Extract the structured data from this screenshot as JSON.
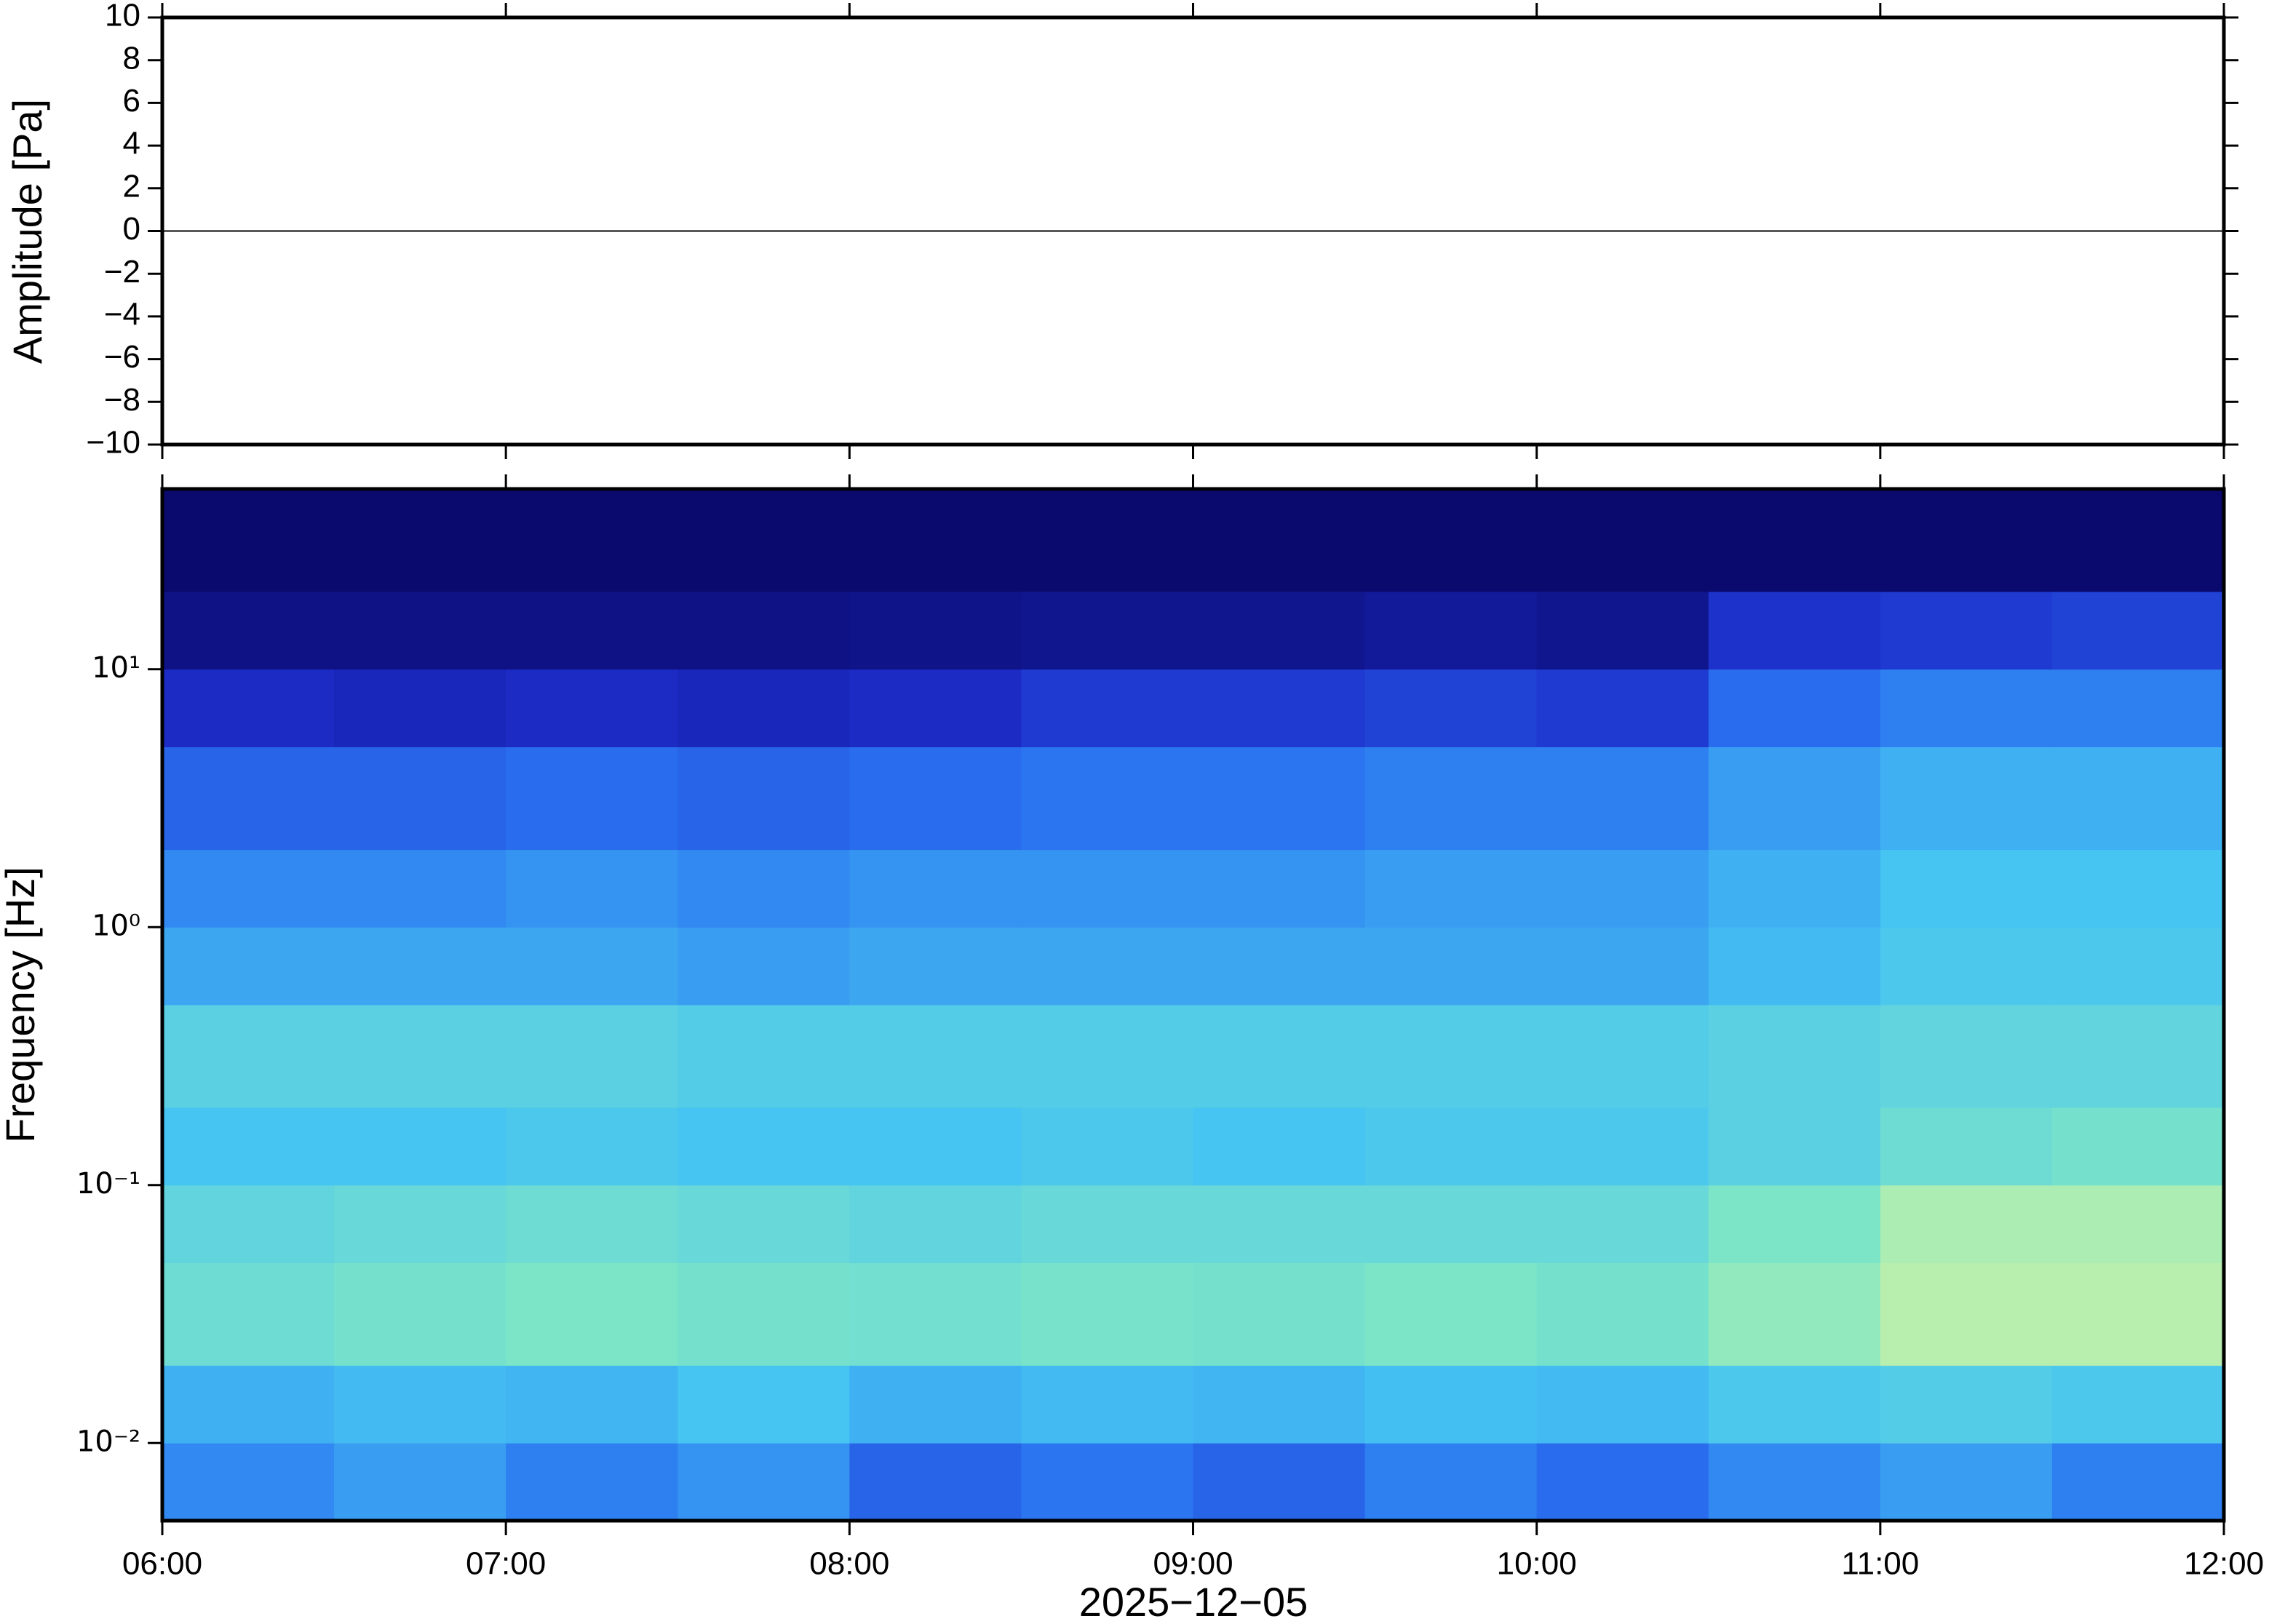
{
  "chart_data": [
    {
      "type": "line",
      "ylabel": "Amplitude [Pa]",
      "x": [
        "06:00",
        "06:30",
        "07:00",
        "07:30",
        "08:00",
        "08:30",
        "09:00",
        "09:30",
        "10:00",
        "10:30",
        "11:00",
        "11:30",
        "12:00"
      ],
      "values": [
        0,
        0,
        0,
        0,
        0,
        0,
        0,
        0,
        0,
        0,
        0,
        0,
        0
      ],
      "color": "#000000",
      "xlim": [
        "06:00",
        "12:00"
      ],
      "ylim": [
        -10,
        10
      ],
      "yticks": [
        {
          "value": -10,
          "label": "−10"
        },
        {
          "value": -8,
          "label": "−8"
        },
        {
          "value": -6,
          "label": "−6"
        },
        {
          "value": -4,
          "label": "−4"
        },
        {
          "value": -2,
          "label": "−2"
        },
        0,
        2,
        4,
        6,
        8,
        10
      ]
    },
    {
      "type": "heatmap",
      "ylabel": "Frequency [Hz]",
      "xlabel": "2025−12−05",
      "xlim": [
        "06:00",
        "12:00"
      ],
      "xticks": [
        "06:00",
        "07:00",
        "08:00",
        "09:00",
        "10:00",
        "11:00",
        "12:00"
      ],
      "ylim": [
        0.005,
        50
      ],
      "yscale": "log",
      "yticks": [
        {
          "value": 0.01,
          "label": "10⁻²"
        },
        {
          "value": 0.1,
          "label": "10⁻¹"
        },
        {
          "value": 1,
          "label": "10⁰"
        },
        {
          "value": 10,
          "label": "10¹"
        }
      ],
      "x_edges": [
        "06:00",
        "06:30",
        "07:00",
        "07:30",
        "08:00",
        "08:30",
        "09:00",
        "09:30",
        "10:00",
        "10:30",
        "11:00",
        "11:30",
        "12:00"
      ],
      "y_edges": [
        0.005,
        0.01,
        0.02,
        0.05,
        0.1,
        0.2,
        0.5,
        1,
        2,
        5,
        10,
        20,
        50
      ],
      "z": [
        [
          0.38,
          0.42,
          0.36,
          0.4,
          0.3,
          0.34,
          0.3,
          0.36,
          0.32,
          0.38,
          0.42,
          0.36
        ],
        [
          0.46,
          0.48,
          0.47,
          0.5,
          0.46,
          0.48,
          0.47,
          0.49,
          0.48,
          0.52,
          0.54,
          0.52
        ],
        [
          0.62,
          0.64,
          0.66,
          0.64,
          0.63,
          0.65,
          0.64,
          0.66,
          0.64,
          0.7,
          0.76,
          0.76
        ],
        [
          0.58,
          0.6,
          0.62,
          0.6,
          0.58,
          0.6,
          0.6,
          0.6,
          0.6,
          0.66,
          0.74,
          0.74
        ],
        [
          0.5,
          0.5,
          0.52,
          0.5,
          0.5,
          0.52,
          0.5,
          0.52,
          0.52,
          0.56,
          0.62,
          0.64
        ],
        [
          0.56,
          0.56,
          0.56,
          0.54,
          0.54,
          0.54,
          0.54,
          0.54,
          0.54,
          0.56,
          0.58,
          0.58
        ],
        [
          0.44,
          0.44,
          0.44,
          0.42,
          0.44,
          0.44,
          0.44,
          0.44,
          0.44,
          0.48,
          0.52,
          0.52
        ],
        [
          0.38,
          0.38,
          0.4,
          0.38,
          0.4,
          0.4,
          0.4,
          0.42,
          0.42,
          0.46,
          0.5,
          0.5
        ],
        [
          0.3,
          0.3,
          0.32,
          0.3,
          0.32,
          0.34,
          0.34,
          0.36,
          0.36,
          0.42,
          0.46,
          0.46
        ],
        [
          0.16,
          0.14,
          0.16,
          0.14,
          0.16,
          0.2,
          0.2,
          0.22,
          0.2,
          0.32,
          0.36,
          0.36
        ],
        [
          0.04,
          0.04,
          0.04,
          0.04,
          0.05,
          0.06,
          0.06,
          0.08,
          0.06,
          0.18,
          0.2,
          0.22
        ],
        [
          0,
          0,
          0,
          0,
          0,
          0,
          0,
          0,
          0,
          0,
          0,
          0
        ]
      ],
      "colors": [
        "#0a0a6e",
        "#1c2cc8",
        "#2a72f0",
        "#46c4f2",
        "#7ee6c6",
        "#e6f59c",
        "#f4b060"
      ]
    }
  ]
}
